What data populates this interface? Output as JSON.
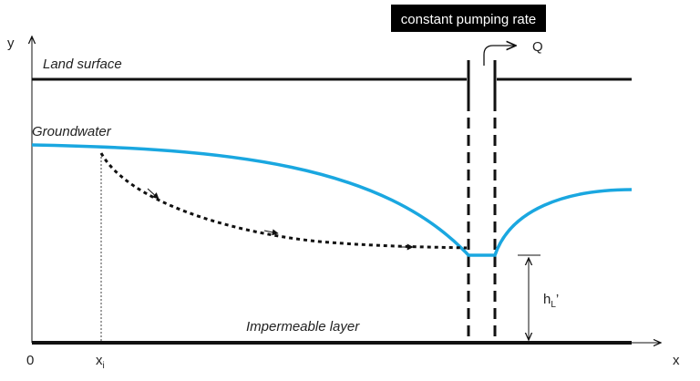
{
  "title": "constant pumping rate",
  "labels": {
    "y_axis": "y",
    "x_axis": "x",
    "origin": "0",
    "x_i_main": "x",
    "x_i_sub": "i",
    "land_surface": "Land surface",
    "groundwater": "Groundwater",
    "impermeable": "Impermeable layer",
    "flow": "Q",
    "h_main": "h",
    "h_sub": "L",
    "h_prime": "’"
  },
  "colors": {
    "groundwater": "#1aa7e0",
    "line": "#111111",
    "title_bg": "#000000"
  }
}
